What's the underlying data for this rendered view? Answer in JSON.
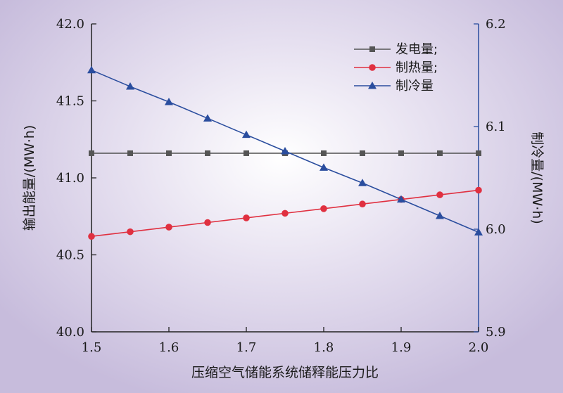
{
  "chart_data": {
    "type": "line",
    "title": "",
    "xlabel": "压缩空气储能系统储释能压力比",
    "ylabel_left": "输出能量/(MW·h)",
    "ylabel_right": "制冷量/(MW·h)",
    "xlim": [
      1.5,
      2.0
    ],
    "ylim_left": [
      40.0,
      42.0
    ],
    "ylim_right": [
      5.9,
      6.2
    ],
    "xticks": [
      "1.5",
      "1.6",
      "1.7",
      "1.8",
      "1.9",
      "2.0"
    ],
    "yticks_left": [
      "40.0",
      "40.5",
      "41.0",
      "41.5",
      "42.0"
    ],
    "yticks_right": [
      "5.9",
      "6.0",
      "6.1",
      "6.2"
    ],
    "x": [
      1.5,
      1.55,
      1.6,
      1.65,
      1.7,
      1.75,
      1.8,
      1.85,
      1.9,
      1.95,
      2.0
    ],
    "grid": false,
    "legend_position": "top-right",
    "series": [
      {
        "name": "发电量;",
        "axis": "left",
        "color": "#555555",
        "marker": "square",
        "values": [
          41.16,
          41.16,
          41.16,
          41.16,
          41.16,
          41.16,
          41.16,
          41.16,
          41.16,
          41.16,
          41.16
        ]
      },
      {
        "name": "制热量;",
        "axis": "left",
        "color": "#e03040",
        "marker": "circle",
        "values": [
          40.62,
          40.65,
          40.68,
          40.71,
          40.74,
          40.77,
          40.8,
          40.83,
          40.86,
          40.89,
          40.92
        ]
      },
      {
        "name": "制冷量",
        "axis": "right",
        "color": "#2a4d9e",
        "marker": "triangle",
        "values": [
          6.155,
          6.139,
          6.124,
          6.108,
          6.092,
          6.076,
          6.06,
          6.045,
          6.029,
          6.013,
          5.997
        ]
      }
    ]
  }
}
